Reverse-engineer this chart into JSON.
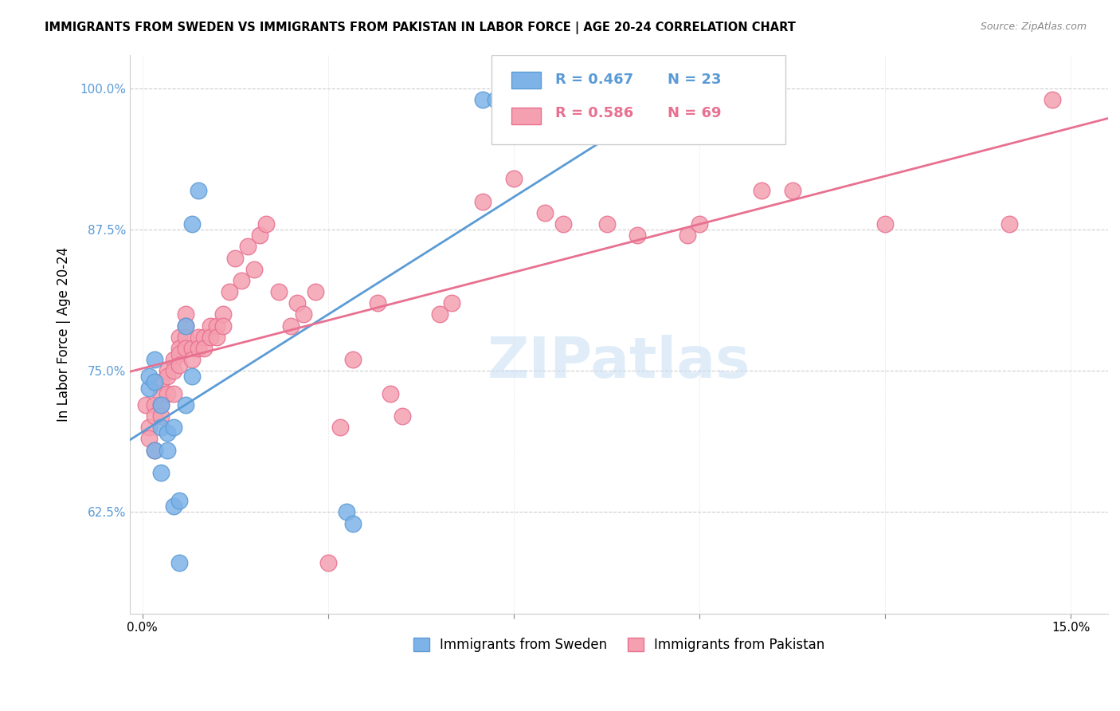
{
  "title": "IMMIGRANTS FROM SWEDEN VS IMMIGRANTS FROM PAKISTAN IN LABOR FORCE | AGE 20-24 CORRELATION CHART",
  "source": "Source: ZipAtlas.com",
  "xlabel_bottom": "",
  "ylabel": "In Labor Force | Age 20-24",
  "x_ticks": [
    0.0,
    0.03,
    0.06,
    0.09,
    0.12,
    0.15
  ],
  "x_tick_labels": [
    "0.0%",
    "",
    "",
    "",
    "",
    "15.0%"
  ],
  "y_ticks": [
    0.625,
    0.75,
    0.875,
    1.0
  ],
  "y_tick_labels": [
    "62.5%",
    "75.0%",
    "87.5%",
    "100.0%"
  ],
  "xlim": [
    -0.002,
    0.156
  ],
  "ylim": [
    0.535,
    1.03
  ],
  "sweden_color": "#7eb3e8",
  "pakistan_color": "#f4a0b0",
  "sweden_edge_color": "#5b9bd5",
  "pakistan_edge_color": "#e87090",
  "legend_sweden_label": "Immigrants from Sweden",
  "legend_pakistan_label": "Immigrants from Pakistan",
  "legend_sweden_R": "R = 0.467",
  "legend_sweden_N": "N = 23",
  "legend_pakistan_R": "R = 0.586",
  "legend_pakistan_N": "N = 69",
  "sweden_R": 0.467,
  "sweden_N": 23,
  "pakistan_R": 0.586,
  "pakistan_N": 69,
  "watermark": "ZIPatlas",
  "sweden_x": [
    0.001,
    0.001,
    0.002,
    0.002,
    0.002,
    0.003,
    0.003,
    0.003,
    0.004,
    0.004,
    0.005,
    0.005,
    0.006,
    0.006,
    0.007,
    0.007,
    0.008,
    0.008,
    0.009,
    0.033,
    0.034,
    0.055,
    0.057
  ],
  "sweden_y": [
    0.735,
    0.745,
    0.74,
    0.76,
    0.68,
    0.72,
    0.66,
    0.7,
    0.695,
    0.68,
    0.7,
    0.63,
    0.635,
    0.58,
    0.79,
    0.72,
    0.745,
    0.88,
    0.91,
    0.625,
    0.615,
    0.99,
    0.99
  ],
  "pakistan_x": [
    0.0005,
    0.001,
    0.001,
    0.002,
    0.002,
    0.002,
    0.003,
    0.003,
    0.003,
    0.003,
    0.004,
    0.004,
    0.004,
    0.005,
    0.005,
    0.005,
    0.006,
    0.006,
    0.006,
    0.006,
    0.007,
    0.007,
    0.007,
    0.007,
    0.008,
    0.008,
    0.009,
    0.009,
    0.01,
    0.01,
    0.011,
    0.011,
    0.012,
    0.012,
    0.013,
    0.013,
    0.014,
    0.015,
    0.016,
    0.017,
    0.018,
    0.019,
    0.02,
    0.022,
    0.024,
    0.025,
    0.026,
    0.028,
    0.03,
    0.032,
    0.034,
    0.038,
    0.04,
    0.042,
    0.048,
    0.05,
    0.055,
    0.06,
    0.065,
    0.068,
    0.075,
    0.08,
    0.088,
    0.09,
    0.1,
    0.105,
    0.12,
    0.14,
    0.147
  ],
  "pakistan_y": [
    0.72,
    0.7,
    0.69,
    0.72,
    0.71,
    0.68,
    0.74,
    0.73,
    0.72,
    0.71,
    0.75,
    0.745,
    0.73,
    0.76,
    0.75,
    0.73,
    0.78,
    0.77,
    0.765,
    0.755,
    0.8,
    0.79,
    0.78,
    0.77,
    0.77,
    0.76,
    0.78,
    0.77,
    0.78,
    0.77,
    0.79,
    0.78,
    0.79,
    0.78,
    0.8,
    0.79,
    0.82,
    0.85,
    0.83,
    0.86,
    0.84,
    0.87,
    0.88,
    0.82,
    0.79,
    0.81,
    0.8,
    0.82,
    0.58,
    0.7,
    0.76,
    0.81,
    0.73,
    0.71,
    0.8,
    0.81,
    0.9,
    0.92,
    0.89,
    0.88,
    0.88,
    0.87,
    0.87,
    0.88,
    0.91,
    0.91,
    0.88,
    0.88,
    0.99
  ]
}
